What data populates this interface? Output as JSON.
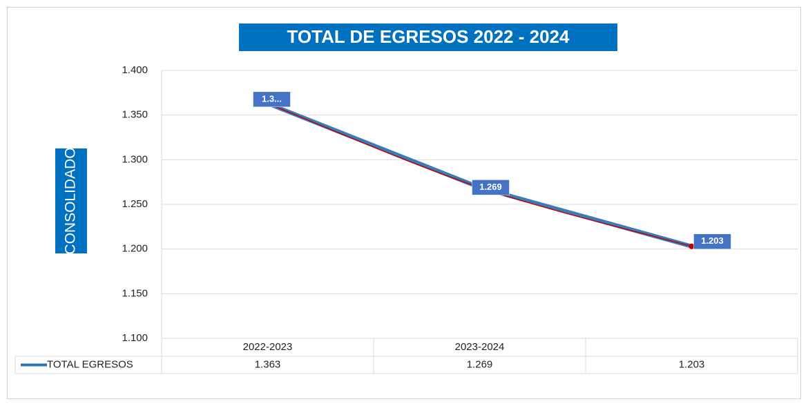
{
  "chart_data": {
    "type": "line",
    "title": "TOTAL DE EGRESOS 2022 - 2024",
    "y_label": "CONSOLIDADO",
    "categories": [
      "2022-2023",
      "2023-2024",
      null
    ],
    "series": [
      {
        "name": "TOTAL EGRESOS",
        "color": "#2e75b6",
        "trend_color": "#c00000",
        "values": [
          1.363,
          1.269,
          1.203
        ],
        "value_labels": [
          "1.3...",
          "1.269",
          "1.203"
        ]
      }
    ],
    "ylim": [
      1.1,
      1.4
    ],
    "yticks": [
      {
        "value": 1.1,
        "label": "1.100"
      },
      {
        "value": 1.15,
        "label": "1.150"
      },
      {
        "value": 1.2,
        "label": "1.200"
      },
      {
        "value": 1.25,
        "label": "1.250"
      },
      {
        "value": 1.3,
        "label": "1.300"
      },
      {
        "value": 1.35,
        "label": "1.350"
      },
      {
        "value": 1.4,
        "label": "1.400"
      }
    ],
    "grid": true,
    "data_table": true
  }
}
